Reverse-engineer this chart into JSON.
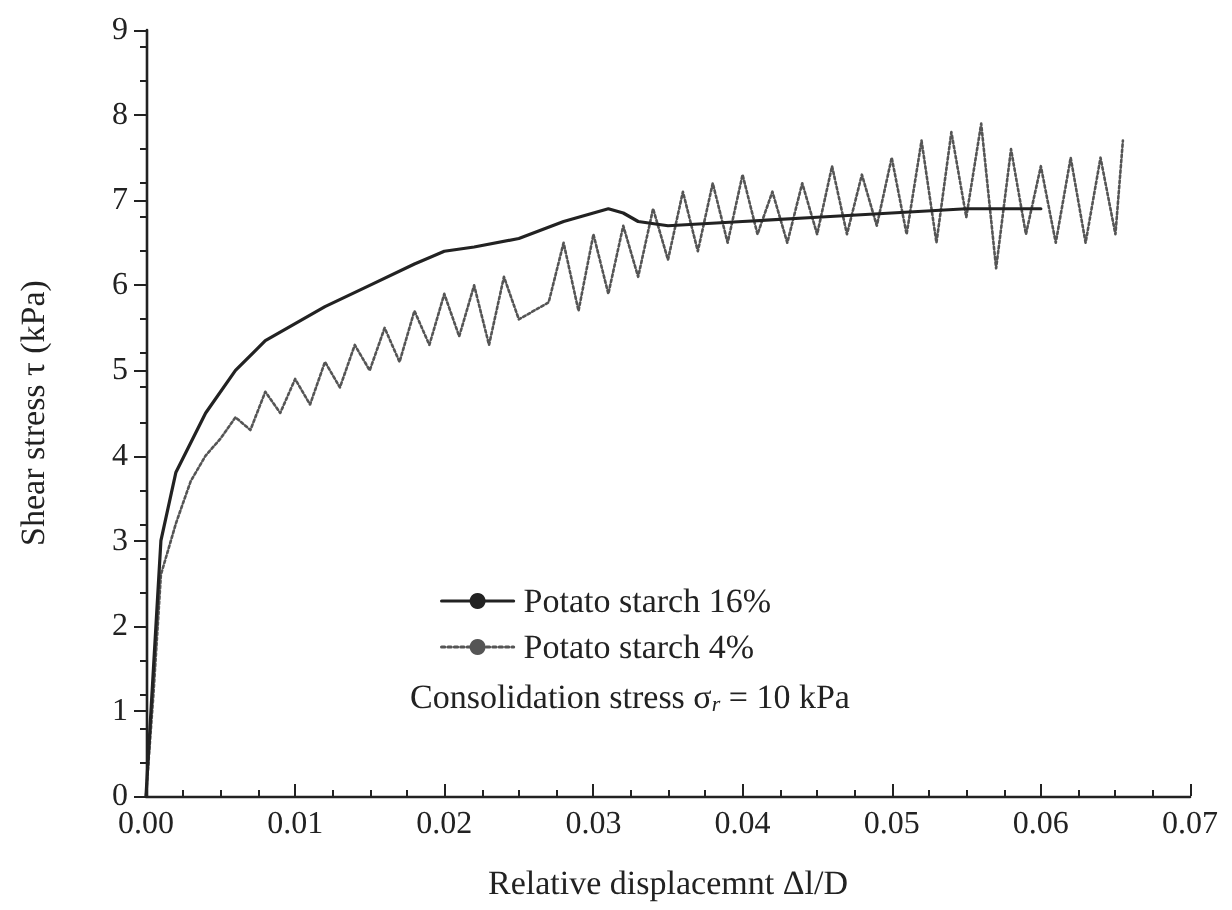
{
  "chart_data": {
    "type": "line",
    "xlabel": "Relative displacemnt Δl/D",
    "ylabel": "Shear stress τ (kPa)",
    "xlim": [
      0,
      0.07
    ],
    "xticks": [
      {
        "value": 0,
        "label": "0.00"
      },
      0.01,
      0.02,
      0.03,
      0.04,
      0.05,
      0.06,
      0.07
    ],
    "ylim": [
      0,
      9
    ],
    "yticks": [
      0,
      1,
      2,
      3,
      4,
      5,
      6,
      7,
      8,
      9
    ],
    "grid": false,
    "legend": "bottom",
    "marker": "none",
    "annotations": [
      "Consolidation stress σ$_{r}$ = 10 kPa"
    ],
    "series": [
      {
        "name": "Potato starch 16%",
        "color": "#222222",
        "line_style": "solid",
        "x": [
          0,
          0.0005,
          0.001,
          0.002,
          0.004,
          0.006,
          0.008,
          0.01,
          0.012,
          0.015,
          0.018,
          0.02,
          0.022,
          0.025,
          0.028,
          0.031,
          0.032,
          0.033,
          0.035,
          0.04,
          0.045,
          0.05,
          0.055,
          0.06
        ],
        "values": [
          0,
          1.5,
          3,
          3.8,
          4.5,
          5.0,
          5.35,
          5.55,
          5.75,
          6.0,
          6.25,
          6.4,
          6.45,
          6.55,
          6.75,
          6.9,
          6.85,
          6.75,
          6.7,
          6.75,
          6.8,
          6.85,
          6.9,
          6.9
        ]
      },
      {
        "name": "Potato starch 4%",
        "color": "#555555",
        "line_style": "dotted",
        "x": [
          0,
          0.0005,
          0.001,
          0.002,
          0.003,
          0.004,
          0.005,
          0.006,
          0.007,
          0.008,
          0.009,
          0.01,
          0.011,
          0.012,
          0.013,
          0.014,
          0.015,
          0.016,
          0.017,
          0.018,
          0.019,
          0.02,
          0.021,
          0.022,
          0.023,
          0.024,
          0.025,
          0.027,
          0.028,
          0.029,
          0.03,
          0.031,
          0.032,
          0.033,
          0.034,
          0.035,
          0.036,
          0.037,
          0.038,
          0.039,
          0.04,
          0.041,
          0.042,
          0.043,
          0.044,
          0.045,
          0.046,
          0.047,
          0.048,
          0.049,
          0.05,
          0.051,
          0.052,
          0.053,
          0.054,
          0.055,
          0.056,
          0.057,
          0.058,
          0.059,
          0.06,
          0.061,
          0.062,
          0.063,
          0.064,
          0.065,
          0.0655
        ],
        "values": [
          0,
          1.2,
          2.6,
          3.2,
          3.7,
          4.0,
          4.2,
          4.45,
          4.3,
          4.75,
          4.5,
          4.9,
          4.6,
          5.1,
          4.8,
          5.3,
          5.0,
          5.5,
          5.1,
          5.7,
          5.3,
          5.9,
          5.4,
          6.0,
          5.3,
          6.1,
          5.6,
          5.8,
          6.5,
          5.7,
          6.6,
          5.9,
          6.7,
          6.1,
          6.9,
          6.3,
          7.1,
          6.4,
          7.2,
          6.5,
          7.3,
          6.6,
          7.1,
          6.5,
          7.2,
          6.6,
          7.4,
          6.6,
          7.3,
          6.7,
          7.5,
          6.6,
          7.7,
          6.5,
          7.8,
          6.8,
          7.9,
          6.2,
          7.6,
          6.6,
          7.4,
          6.5,
          7.5,
          6.5,
          7.5,
          6.6,
          7.7
        ]
      }
    ]
  }
}
